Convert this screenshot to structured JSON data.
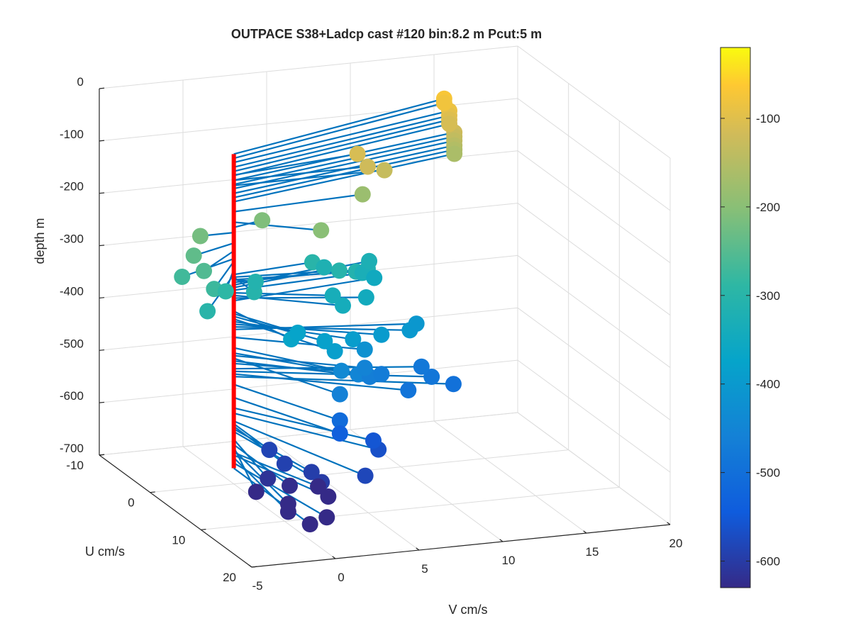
{
  "figure": {
    "title": "OUTPACE S38+Ladcp cast #120 bin:8.2 m  Pcut:5 m"
  },
  "chart_data": {
    "type": "scatter3d",
    "title": "OUTPACE S38+Ladcp cast #120 bin:8.2 m  Pcut:5 m",
    "xlabel": "V cm/s",
    "ylabel": "U cm/s",
    "zlabel": "depth m",
    "xlim": [
      -5,
      20
    ],
    "ylim": [
      -10,
      20
    ],
    "zlim": [
      -700,
      0
    ],
    "xticks": [
      "-5",
      "0",
      "5",
      "10",
      "15",
      "20"
    ],
    "yticks": [
      "-10",
      "0",
      "10",
      "20"
    ],
    "zticks": [
      "0",
      "-100",
      "-200",
      "-300",
      "-400",
      "-500",
      "-600",
      "-700"
    ],
    "colorbar": {
      "range": [
        -630,
        -20
      ],
      "ticks": [
        "-100",
        "-200",
        "-300",
        "-400",
        "-500",
        "-600"
      ],
      "tick_values": [
        -100,
        -200,
        -300,
        -400,
        -500,
        -600
      ],
      "colormap": "parula"
    },
    "origin_line": {
      "color": "#ff0000",
      "depth_range": [
        -670,
        -70
      ]
    },
    "stick_color": "#0072BD",
    "series": [
      {
        "columns": [
          "depth_m",
          "V_cm_s",
          "U_cm_s"
        ],
        "points": [
          [
            -70,
            15,
            -8
          ],
          [
            -78,
            15,
            -8
          ],
          [
            -86,
            15,
            -7
          ],
          [
            -95,
            15,
            -7
          ],
          [
            -103,
            15,
            -7
          ],
          [
            -111,
            15,
            -7
          ],
          [
            -120,
            15,
            -6
          ],
          [
            -128,
            15,
            -6
          ],
          [
            -136,
            15,
            -6
          ],
          [
            -145,
            15,
            -6
          ],
          [
            -153,
            15,
            -6
          ],
          [
            -161,
            15,
            -6
          ],
          [
            -120,
            8,
            0
          ],
          [
            -130,
            9,
            0
          ],
          [
            -110,
            8,
            -2
          ],
          [
            -180,
            8,
            -1
          ],
          [
            -200,
            4,
            4
          ],
          [
            -210,
            2,
            -1
          ],
          [
            -220,
            -2,
            0
          ],
          [
            -240,
            -3,
            2
          ],
          [
            -255,
            -3,
            4
          ],
          [
            -270,
            -4,
            3
          ],
          [
            -275,
            -3,
            6
          ],
          [
            -290,
            -2,
            5
          ],
          [
            -300,
            -4,
            8
          ],
          [
            -305,
            0,
            4
          ],
          [
            -310,
            1,
            1
          ],
          [
            -300,
            5,
            -1
          ],
          [
            -305,
            6,
            1
          ],
          [
            -310,
            7,
            1
          ],
          [
            -315,
            8,
            0
          ],
          [
            -320,
            6,
            -2
          ],
          [
            -325,
            9,
            -3
          ],
          [
            -330,
            8,
            -1
          ],
          [
            -335,
            5,
            3
          ],
          [
            -340,
            5,
            5
          ],
          [
            -345,
            7,
            3
          ],
          [
            -350,
            9,
            -2
          ],
          [
            -370,
            1,
            8
          ],
          [
            -375,
            2,
            6
          ],
          [
            -380,
            3,
            8
          ],
          [
            -385,
            3,
            10
          ],
          [
            -390,
            5,
            7
          ],
          [
            -395,
            7,
            6
          ],
          [
            -400,
            9,
            5
          ],
          [
            -405,
            10,
            3
          ],
          [
            -420,
            6,
            6
          ],
          [
            -440,
            4,
            8
          ],
          [
            -450,
            5,
            8
          ],
          [
            -455,
            6,
            6
          ],
          [
            -460,
            3,
            11
          ],
          [
            -465,
            6,
            7
          ],
          [
            -470,
            7,
            6
          ],
          [
            -480,
            10,
            4
          ],
          [
            -485,
            10,
            6
          ],
          [
            -490,
            8,
            8
          ],
          [
            -495,
            11,
            7
          ],
          [
            -510,
            3,
            11
          ],
          [
            -535,
            3,
            11
          ],
          [
            -555,
            5,
            11
          ],
          [
            -565,
            5,
            12
          ],
          [
            -580,
            3,
            16
          ],
          [
            -585,
            0,
            7
          ],
          [
            -590,
            0,
            10
          ],
          [
            -595,
            1,
            12
          ],
          [
            -600,
            1,
            14
          ],
          [
            -615,
            -1,
            10
          ],
          [
            -625,
            0,
            11
          ],
          [
            -630,
            -2,
            11
          ],
          [
            -635,
            -1,
            14
          ],
          [
            -640,
            2,
            10
          ],
          [
            -645,
            2,
            12
          ],
          [
            -650,
            -1,
            14
          ],
          [
            -660,
            1,
            15
          ],
          [
            -670,
            0,
            15
          ]
        ]
      }
    ],
    "grid": true,
    "view": "3d-perspective"
  }
}
